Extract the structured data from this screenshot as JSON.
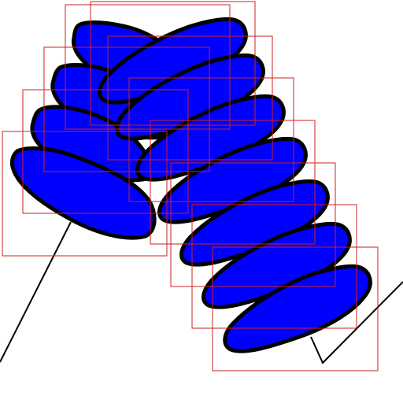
{
  "colors": {
    "background": "#ffffff",
    "blob_fill": "#0000ff",
    "blob_outline": "#000000",
    "box_stroke": "#cc2222",
    "line_stroke": "#000000"
  }
}
